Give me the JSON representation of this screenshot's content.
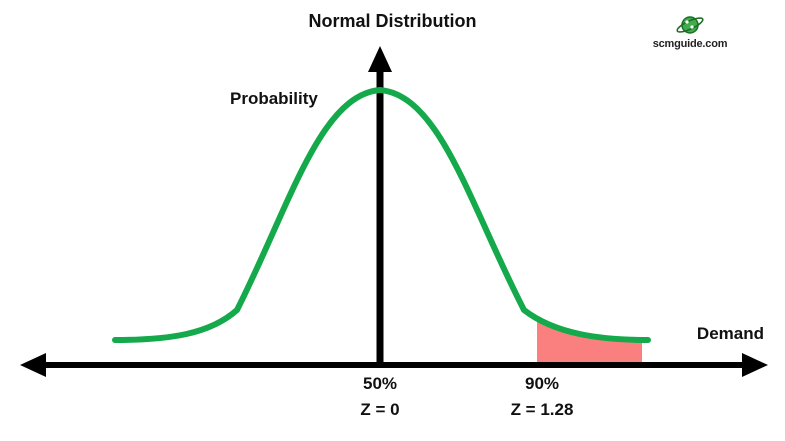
{
  "title": "Normal Distribution",
  "y_axis_label": "Probability",
  "x_axis_label": "Demand",
  "markers": [
    {
      "percent": "50%",
      "z": "Z = 0"
    },
    {
      "percent": "90%",
      "z": "Z = 1.28"
    }
  ],
  "logo": {
    "text": "scmguide.com",
    "icon": "planet-globe-icon"
  },
  "colors": {
    "curve": "#14a94a",
    "tail_shade": "#fa8080",
    "axes": "#000000",
    "logo": "#2e9b3c"
  },
  "distribution": {
    "mean_z": 0,
    "service_level_z": 1.28,
    "shaded_region": "right tail beyond 90%"
  }
}
